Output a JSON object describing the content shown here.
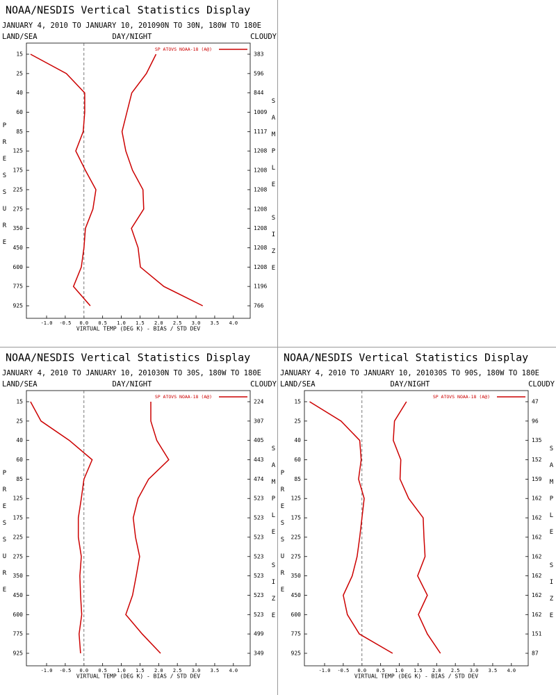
{
  "chart_data": [
    {
      "type": "line",
      "title": "NOAA/NESDIS Vertical Statistics Display",
      "subtitle": "JANUARY 4, 2010 TO JANUARY 10, 201090N TO 30N, 180W TO 180E",
      "land_sea": "LAND/SEA",
      "day_night": "DAY/NIGHT",
      "cloudy": "CLOUDY",
      "legend": "SP ATOVS NOAA-18 (A@)",
      "ylabel": "PRESSURE",
      "y2label": "SAMPLE SIZE",
      "xlabel": "VIRTUAL TEMP (DEG K) - BIAS / STD DEV",
      "categories": [
        15,
        25,
        40,
        60,
        85,
        125,
        175,
        225,
        275,
        350,
        450,
        600,
        775,
        925
      ],
      "sample_sizes": [
        383,
        596,
        844,
        1009,
        1117,
        1208,
        1208,
        1208,
        1208,
        1208,
        1208,
        1208,
        1196,
        766
      ],
      "series": [
        {
          "color": "#cc0000",
          "values": [
            -1.43,
            -0.47,
            0.02,
            0.02,
            -0.02,
            -0.22,
            0.04,
            0.32,
            0.24,
            0.04,
            0,
            -0.07,
            -0.28,
            0.17
          ]
        },
        {
          "color": "#cc0000",
          "values": [
            1.93,
            1.67,
            1.28,
            1.15,
            1.02,
            1.12,
            1.3,
            1.58,
            1.6,
            1.27,
            1.45,
            1.51,
            2.14,
            3.18
          ]
        }
      ],
      "xlim": [
        -1.54,
        4.45
      ],
      "xticks": [
        {
          "value": -1,
          "label": "-1.0"
        },
        {
          "value": -0.5,
          "label": "-0.5"
        },
        {
          "value": 0,
          "label": "0.0"
        },
        {
          "value": 0.5,
          "label": "0.5"
        },
        {
          "value": 1,
          "label": "1.0"
        },
        {
          "value": 1.5,
          "label": "1.5"
        },
        {
          "value": 2,
          "label": "2.0"
        },
        {
          "value": 2.5,
          "label": "2.5"
        },
        {
          "value": 3,
          "label": "3.0"
        },
        {
          "value": 3.5,
          "label": "3.5"
        },
        {
          "value": 4,
          "label": "4.0"
        }
      ],
      "grid": false
    },
    {
      "type": "line",
      "title": "NOAA/NESDIS Vertical Statistics Display",
      "subtitle": "JANUARY 4, 2010 TO JANUARY 10, 201030N TO 30S, 180W TO 180E",
      "land_sea": "LAND/SEA",
      "day_night": "DAY/NIGHT",
      "cloudy": "CLOUDY",
      "legend": "SP ATOVS NOAA-18 (A@)",
      "ylabel": "PRESSURE",
      "y2label": "SAMPLE SIZE",
      "xlabel": "VIRTUAL TEMP (DEG K) - BIAS / STD DEV",
      "categories": [
        15,
        25,
        40,
        60,
        85,
        125,
        175,
        225,
        275,
        350,
        450,
        600,
        775,
        925
      ],
      "sample_sizes": [
        224,
        307,
        405,
        443,
        474,
        523,
        523,
        523,
        523,
        523,
        523,
        523,
        499,
        349
      ],
      "series": [
        {
          "color": "#cc0000",
          "values": [
            -1.43,
            -1.15,
            -0.39,
            0.22,
            0,
            -0.07,
            -0.15,
            -0.15,
            -0.07,
            -0.11,
            -0.09,
            -0.06,
            -0.13,
            -0.09
          ]
        },
        {
          "color": "#cc0000",
          "values": [
            1.79,
            1.79,
            1.95,
            2.27,
            1.73,
            1.45,
            1.32,
            1.38,
            1.49,
            1.4,
            1.3,
            1.12,
            1.56,
            2.05
          ]
        }
      ],
      "xlim": [
        -1.54,
        4.45
      ],
      "xticks": [
        {
          "value": -1,
          "label": "-1.0"
        },
        {
          "value": -0.5,
          "label": "-0.5"
        },
        {
          "value": 0,
          "label": "0.0"
        },
        {
          "value": 0.5,
          "label": "0.5"
        },
        {
          "value": 1,
          "label": "1.0"
        },
        {
          "value": 1.5,
          "label": "1.5"
        },
        {
          "value": 2,
          "label": "2.0"
        },
        {
          "value": 2.5,
          "label": "2.5"
        },
        {
          "value": 3,
          "label": "3.0"
        },
        {
          "value": 3.5,
          "label": "3.5"
        },
        {
          "value": 4,
          "label": "4.0"
        }
      ],
      "grid": false
    },
    {
      "type": "line",
      "title": "NOAA/NESDIS Vertical Statistics Display",
      "subtitle": "JANUARY 4, 2010 TO JANUARY 10, 201030S TO 90S, 180W TO 180E",
      "land_sea": "LAND/SEA",
      "day_night": "DAY/NIGHT",
      "cloudy": "CLOUDY",
      "legend": "SP ATOVS NOAA-18 (A@)",
      "ylabel": "PRESSURE",
      "y2label": "SAMPLE SIZE",
      "xlabel": "VIRTUAL TEMP (DEG K) - BIAS / STD DEV",
      "categories": [
        15,
        25,
        40,
        60,
        85,
        125,
        175,
        225,
        275,
        350,
        450,
        600,
        775,
        925
      ],
      "sample_sizes": [
        47,
        96,
        135,
        152,
        159,
        162,
        162,
        162,
        162,
        162,
        162,
        162,
        151,
        87
      ],
      "series": [
        {
          "color": "#cc0000",
          "values": [
            -1.4,
            -0.56,
            -0.06,
            -0.02,
            -0.09,
            0.06,
            0,
            -0.06,
            -0.13,
            -0.26,
            -0.5,
            -0.39,
            -0.07,
            0.82
          ]
        },
        {
          "color": "#cc0000",
          "values": [
            1.19,
            0.87,
            0.84,
            1.04,
            1.02,
            1.25,
            1.64,
            1.66,
            1.69,
            1.49,
            1.75,
            1.51,
            1.75,
            2.1
          ]
        }
      ],
      "xlim": [
        -1.54,
        4.45
      ],
      "xticks": [
        {
          "value": -1,
          "label": "-1.0"
        },
        {
          "value": -0.5,
          "label": "-0.5"
        },
        {
          "value": 0,
          "label": "0.0"
        },
        {
          "value": 0.5,
          "label": "0.5"
        },
        {
          "value": 1,
          "label": "1.0"
        },
        {
          "value": 1.5,
          "label": "1.5"
        },
        {
          "value": 2,
          "label": "2.0"
        },
        {
          "value": 2.5,
          "label": "2.5"
        },
        {
          "value": 3,
          "label": "3.0"
        },
        {
          "value": 3.5,
          "label": "3.5"
        },
        {
          "value": 4,
          "label": "4.0"
        }
      ],
      "grid": false
    }
  ]
}
